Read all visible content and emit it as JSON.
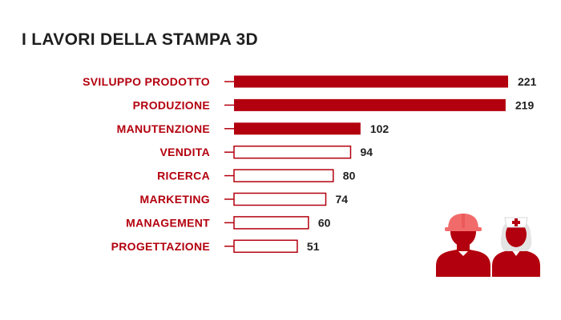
{
  "title": "I LAVORI DELLA STAMPA 3D",
  "colors": {
    "accent": "#b3000e",
    "text_dark": "#1f1f1f",
    "bar_outline": "#b3000e"
  },
  "illustration": {
    "icons": [
      "worker-hard-hat-icon",
      "nurse-icon"
    ]
  },
  "chart_data": {
    "type": "bar",
    "orientation": "horizontal",
    "title": "I LAVORI DELLA STAMPA 3D",
    "xlabel": "",
    "ylabel": "",
    "categories": [
      "SVILUPPO PRODOTTO",
      "PRODUZIONE",
      "MANUTENZIONE",
      "VENDITA",
      "RICERCA",
      "MARKETING",
      "MANAGEMENT",
      "PROGETTAZIONE"
    ],
    "values": [
      221,
      219,
      102,
      94,
      80,
      74,
      60,
      51
    ],
    "filled": [
      true,
      true,
      true,
      false,
      false,
      false,
      false,
      false
    ],
    "data_labels": [
      "221",
      "219",
      "102",
      "94",
      "80",
      "74",
      "60",
      "51"
    ],
    "xlim": [
      0,
      221
    ],
    "grid": false,
    "legend": "none"
  }
}
